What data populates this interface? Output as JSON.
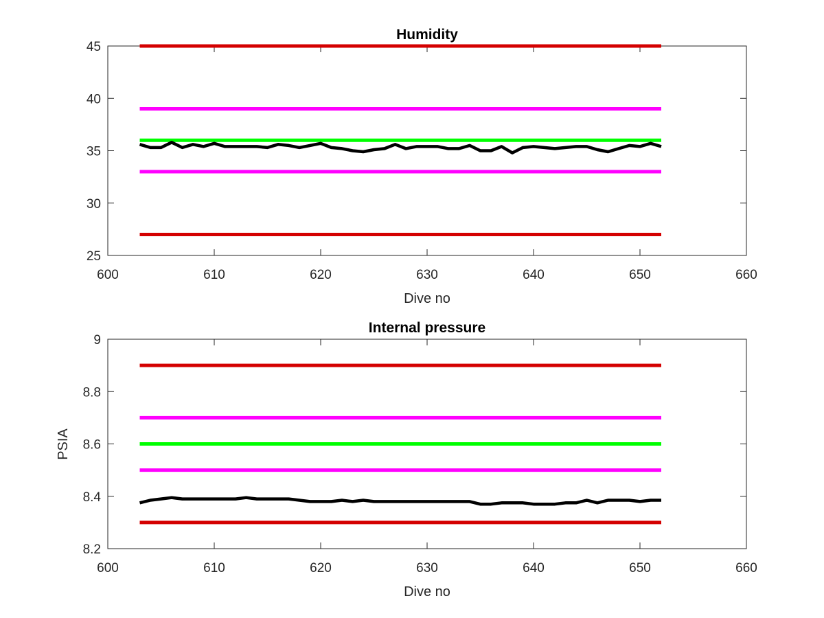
{
  "chart_data": [
    {
      "type": "line",
      "title": "Humidity",
      "xlabel": "Dive no",
      "ylabel": "",
      "xlim": [
        600,
        660
      ],
      "ylim": [
        25,
        45
      ],
      "xticks": [
        600,
        610,
        620,
        630,
        640,
        650,
        660
      ],
      "yticks": [
        25,
        30,
        35,
        40,
        45
      ],
      "grid": false,
      "series": [
        {
          "color": "#d40000",
          "x": [
            603,
            652
          ],
          "y": [
            45,
            45
          ]
        },
        {
          "color": "#ff00ff",
          "x": [
            603,
            652
          ],
          "y": [
            39,
            39
          ]
        },
        {
          "color": "#00ff00",
          "x": [
            603,
            652
          ],
          "y": [
            36,
            36
          ]
        },
        {
          "color": "#ff00ff",
          "x": [
            603,
            652
          ],
          "y": [
            33,
            33
          ]
        },
        {
          "color": "#d40000",
          "x": [
            603,
            652
          ],
          "y": [
            27,
            27
          ]
        },
        {
          "color": "#000000",
          "x": [
            603,
            604,
            605,
            606,
            607,
            608,
            609,
            610,
            611,
            612,
            613,
            614,
            615,
            616,
            617,
            618,
            619,
            620,
            621,
            622,
            623,
            624,
            625,
            626,
            627,
            628,
            629,
            630,
            631,
            632,
            633,
            634,
            635,
            636,
            637,
            638,
            639,
            640,
            641,
            642,
            643,
            644,
            645,
            646,
            647,
            648,
            649,
            650,
            651,
            652
          ],
          "y": [
            35.6,
            35.3,
            35.3,
            35.8,
            35.3,
            35.6,
            35.4,
            35.7,
            35.4,
            35.4,
            35.4,
            35.4,
            35.3,
            35.6,
            35.5,
            35.3,
            35.5,
            35.7,
            35.3,
            35.2,
            35.0,
            34.9,
            35.1,
            35.2,
            35.6,
            35.2,
            35.4,
            35.4,
            35.4,
            35.2,
            35.2,
            35.5,
            35.0,
            35.0,
            35.4,
            34.8,
            35.3,
            35.4,
            35.3,
            35.2,
            35.3,
            35.4,
            35.4,
            35.1,
            34.9,
            35.2,
            35.5,
            35.4,
            35.7,
            35.4
          ]
        }
      ]
    },
    {
      "type": "line",
      "title": "Internal pressure",
      "xlabel": "Dive no",
      "ylabel": "PSIA",
      "xlim": [
        600,
        660
      ],
      "ylim": [
        8.2,
        9
      ],
      "xticks": [
        600,
        610,
        620,
        630,
        640,
        650,
        660
      ],
      "yticks": [
        8.2,
        8.4,
        8.6,
        8.8,
        9
      ],
      "ytick_labels": [
        "8.2",
        "8.4",
        "8.6",
        "8.8",
        "9"
      ],
      "grid": false,
      "series": [
        {
          "color": "#d40000",
          "x": [
            603,
            652
          ],
          "y": [
            8.9,
            8.9
          ]
        },
        {
          "color": "#ff00ff",
          "x": [
            603,
            652
          ],
          "y": [
            8.7,
            8.7
          ]
        },
        {
          "color": "#00ff00",
          "x": [
            603,
            652
          ],
          "y": [
            8.6,
            8.6
          ]
        },
        {
          "color": "#ff00ff",
          "x": [
            603,
            652
          ],
          "y": [
            8.5,
            8.5
          ]
        },
        {
          "color": "#d40000",
          "x": [
            603,
            652
          ],
          "y": [
            8.3,
            8.3
          ]
        },
        {
          "color": "#000000",
          "x": [
            603,
            604,
            605,
            606,
            607,
            608,
            609,
            610,
            611,
            612,
            613,
            614,
            615,
            616,
            617,
            618,
            619,
            620,
            621,
            622,
            623,
            624,
            625,
            626,
            627,
            628,
            629,
            630,
            631,
            632,
            633,
            634,
            635,
            636,
            637,
            638,
            639,
            640,
            641,
            642,
            643,
            644,
            645,
            646,
            647,
            648,
            649,
            650,
            651,
            652
          ],
          "y": [
            8.375,
            8.385,
            8.39,
            8.395,
            8.39,
            8.39,
            8.39,
            8.39,
            8.39,
            8.39,
            8.395,
            8.39,
            8.39,
            8.39,
            8.39,
            8.385,
            8.38,
            8.38,
            8.38,
            8.385,
            8.38,
            8.385,
            8.38,
            8.38,
            8.38,
            8.38,
            8.38,
            8.38,
            8.38,
            8.38,
            8.38,
            8.38,
            8.37,
            8.37,
            8.375,
            8.375,
            8.375,
            8.37,
            8.37,
            8.37,
            8.375,
            8.375,
            8.385,
            8.375,
            8.385,
            8.385,
            8.385,
            8.38,
            8.385,
            8.385
          ]
        }
      ]
    }
  ]
}
